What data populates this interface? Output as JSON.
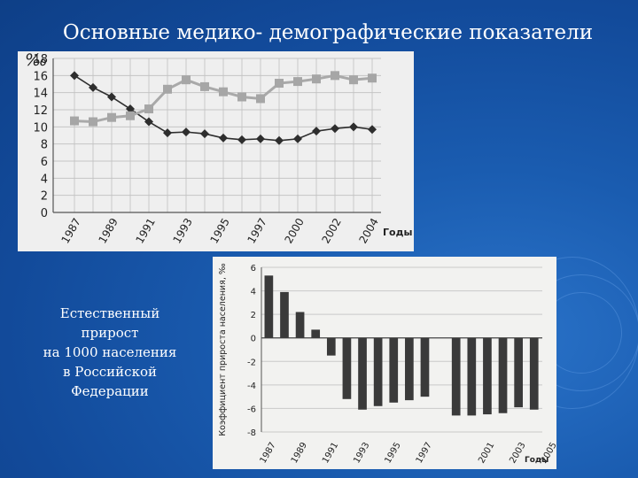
{
  "title": "Основные медико- демографические показатели",
  "caption": [
    "Естественный",
    "прирост",
    "на 1000 населения",
    "в Российской",
    "Федерации"
  ],
  "colors": {
    "background": "#1a5cb0",
    "text": "#ffffff",
    "series_birth": "#a8a8a8",
    "series_death": "#333333",
    "bars": "#3a3a3a"
  },
  "chart_data": [
    {
      "type": "line",
      "ylabel": "‰",
      "xlabel": "Годы",
      "ylim": [
        0,
        18
      ],
      "yticks": [
        0,
        2,
        4,
        6,
        8,
        10,
        12,
        14,
        16,
        18
      ],
      "xticks": [
        "1987",
        "1989",
        "1991",
        "1993",
        "1995",
        "1997",
        "2000",
        "2002",
        "2004"
      ],
      "grid": true,
      "series": [
        {
          "name": "",
          "marker": "diamond",
          "values": [
            16,
            14.6,
            13.5,
            12.1,
            10.6,
            9.3,
            9.4,
            9.2,
            8.7,
            8.5,
            8.6,
            8.4,
            8.6,
            9.5,
            9.8,
            10,
            9.7
          ]
        },
        {
          "name": "",
          "marker": "square",
          "values": [
            10.7,
            10.6,
            11.1,
            11.3,
            12.1,
            14.4,
            15.5,
            14.7,
            14.1,
            13.5,
            13.3,
            15.1,
            15.3,
            15.6,
            16,
            15.5,
            15.7
          ]
        }
      ]
    },
    {
      "type": "bar",
      "ylabel": "Коэффициент прироста населения, ‰",
      "xlabel": "Годы",
      "ylim": [
        -8,
        6
      ],
      "yticks": [
        -8,
        -6,
        -4,
        -2,
        0,
        2,
        4,
        6
      ],
      "xticks": [
        "1987",
        "1989",
        "1991",
        "1993",
        "1995",
        "1997",
        "2001",
        "2003",
        "2005"
      ],
      "grid": true,
      "values": [
        5.3,
        3.9,
        2.2,
        0.7,
        -1.5,
        -5.2,
        -6.1,
        -5.8,
        -5.5,
        -5.3,
        -5,
        null,
        -6.6,
        -6.6,
        -6.5,
        -6.4,
        -5.9,
        -6.1
      ]
    }
  ]
}
